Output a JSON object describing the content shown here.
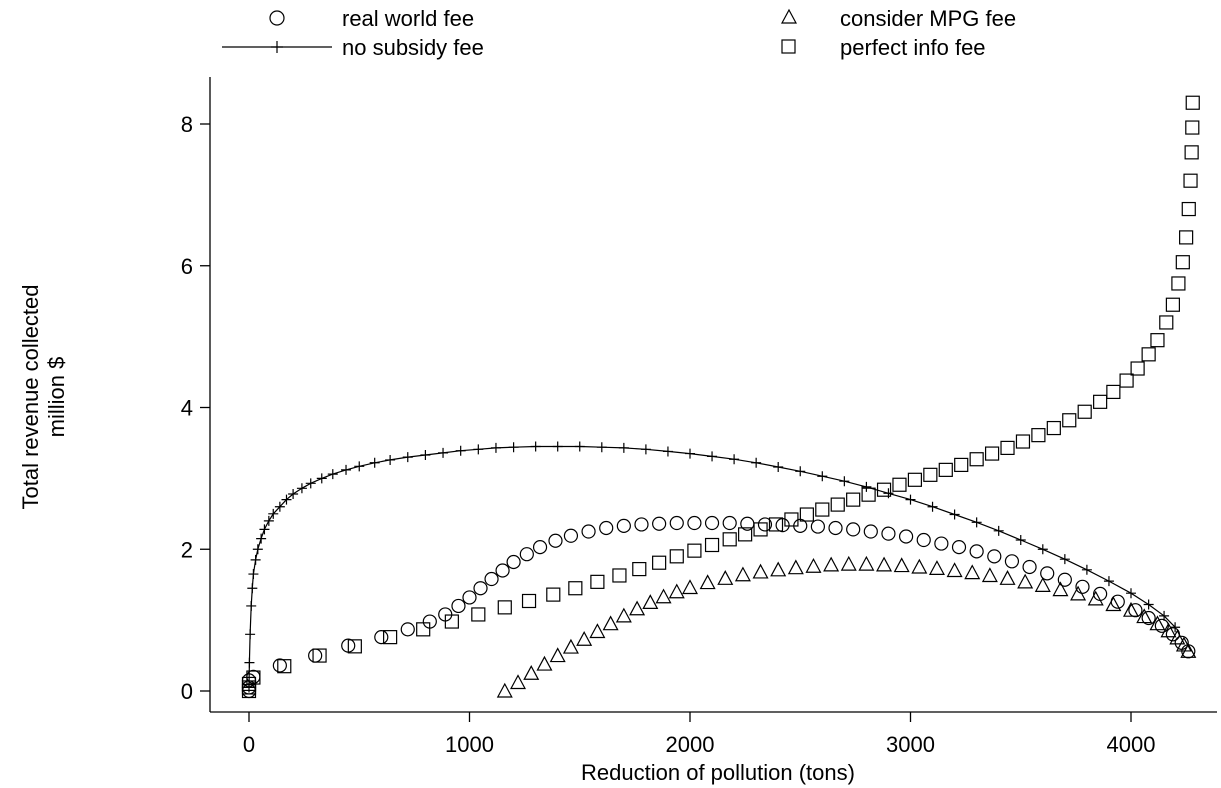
{
  "chart_data": {
    "type": "scatter",
    "title": "",
    "xlabel": "Reduction of pollution (tons)",
    "ylabel": [
      "Total revenue collected",
      "million $"
    ],
    "xlim": [
      -150,
      4400
    ],
    "ylim": [
      -0.3,
      8.6
    ],
    "xticks": [
      0,
      1000,
      2000,
      3000,
      4000
    ],
    "yticks": [
      0,
      2,
      4,
      6,
      8
    ],
    "grid": false,
    "legend_position": "top",
    "series": [
      {
        "name": "real world fee",
        "marker": "circle",
        "line": false,
        "x": [
          0,
          0,
          0,
          20,
          140,
          300,
          450,
          600,
          720,
          820,
          890,
          950,
          1000,
          1050,
          1100,
          1150,
          1200,
          1260,
          1320,
          1390,
          1460,
          1540,
          1620,
          1700,
          1780,
          1860,
          1940,
          2020,
          2100,
          2180,
          2260,
          2340,
          2420,
          2500,
          2580,
          2660,
          2740,
          2820,
          2900,
          2980,
          3060,
          3140,
          3220,
          3300,
          3380,
          3460,
          3540,
          3620,
          3700,
          3780,
          3860,
          3940,
          4020,
          4080,
          4140,
          4190,
          4230,
          4260
        ],
        "y": [
          0,
          0.05,
          0.15,
          0.2,
          0.36,
          0.5,
          0.64,
          0.76,
          0.87,
          0.98,
          1.08,
          1.2,
          1.32,
          1.45,
          1.58,
          1.7,
          1.82,
          1.93,
          2.03,
          2.12,
          2.19,
          2.25,
          2.3,
          2.33,
          2.35,
          2.36,
          2.37,
          2.37,
          2.37,
          2.37,
          2.36,
          2.35,
          2.34,
          2.33,
          2.32,
          2.3,
          2.28,
          2.25,
          2.22,
          2.18,
          2.13,
          2.08,
          2.03,
          1.97,
          1.9,
          1.83,
          1.75,
          1.66,
          1.57,
          1.47,
          1.37,
          1.26,
          1.14,
          1.03,
          0.92,
          0.8,
          0.68,
          0.56
        ]
      },
      {
        "name": "consider MPG fee",
        "marker": "triangle",
        "line": false,
        "x": [
          1160,
          1220,
          1280,
          1340,
          1400,
          1460,
          1520,
          1580,
          1640,
          1700,
          1760,
          1820,
          1880,
          1940,
          2000,
          2080,
          2160,
          2240,
          2320,
          2400,
          2480,
          2560,
          2640,
          2720,
          2800,
          2880,
          2960,
          3040,
          3120,
          3200,
          3280,
          3360,
          3440,
          3520,
          3600,
          3680,
          3760,
          3840,
          3920,
          4000,
          4060,
          4120,
          4170,
          4210,
          4240,
          4260
        ],
        "y": [
          0.0,
          0.12,
          0.25,
          0.38,
          0.5,
          0.62,
          0.73,
          0.84,
          0.95,
          1.06,
          1.16,
          1.25,
          1.33,
          1.4,
          1.46,
          1.53,
          1.59,
          1.64,
          1.68,
          1.71,
          1.74,
          1.76,
          1.78,
          1.79,
          1.79,
          1.78,
          1.77,
          1.75,
          1.73,
          1.7,
          1.67,
          1.63,
          1.59,
          1.54,
          1.49,
          1.43,
          1.37,
          1.3,
          1.22,
          1.14,
          1.05,
          0.95,
          0.85,
          0.75,
          0.65,
          0.56
        ]
      },
      {
        "name": "no subsidy fee",
        "marker": "plus",
        "line": true,
        "x": [
          0,
          2,
          5,
          10,
          15,
          20,
          30,
          40,
          55,
          70,
          90,
          110,
          140,
          170,
          200,
          240,
          280,
          330,
          380,
          440,
          500,
          570,
          640,
          720,
          800,
          880,
          960,
          1040,
          1120,
          1200,
          1300,
          1400,
          1500,
          1600,
          1700,
          1800,
          1900,
          2000,
          2100,
          2200,
          2300,
          2400,
          2500,
          2600,
          2700,
          2800,
          2900,
          3000,
          3100,
          3200,
          3300,
          3400,
          3500,
          3600,
          3700,
          3800,
          3900,
          4000,
          4080,
          4150,
          4200
        ],
        "y": [
          0.05,
          0.4,
          0.8,
          1.2,
          1.45,
          1.65,
          1.85,
          2.0,
          2.15,
          2.28,
          2.4,
          2.5,
          2.6,
          2.7,
          2.78,
          2.86,
          2.93,
          3.0,
          3.06,
          3.12,
          3.17,
          3.22,
          3.26,
          3.3,
          3.33,
          3.36,
          3.39,
          3.41,
          3.43,
          3.44,
          3.45,
          3.45,
          3.45,
          3.44,
          3.43,
          3.41,
          3.38,
          3.35,
          3.31,
          3.27,
          3.22,
          3.16,
          3.1,
          3.03,
          2.96,
          2.88,
          2.79,
          2.7,
          2.6,
          2.49,
          2.38,
          2.26,
          2.13,
          2.0,
          1.86,
          1.71,
          1.55,
          1.38,
          1.22,
          1.06,
          0.9
        ]
      },
      {
        "name": "perfect info fee",
        "marker": "square",
        "line": false,
        "x": [
          0,
          0,
          0,
          20,
          160,
          320,
          480,
          640,
          790,
          920,
          1040,
          1160,
          1270,
          1380,
          1480,
          1580,
          1680,
          1770,
          1860,
          1940,
          2020,
          2100,
          2180,
          2250,
          2320,
          2390,
          2460,
          2530,
          2600,
          2670,
          2740,
          2810,
          2880,
          2950,
          3020,
          3090,
          3160,
          3230,
          3300,
          3370,
          3440,
          3510,
          3580,
          3650,
          3720,
          3790,
          3860,
          3920,
          3980,
          4030,
          4080,
          4120,
          4160,
          4190,
          4215,
          4235,
          4250,
          4262,
          4270,
          4275,
          4278,
          4280
        ],
        "y": [
          0,
          0.05,
          0.1,
          0.19,
          0.35,
          0.5,
          0.63,
          0.76,
          0.87,
          0.98,
          1.08,
          1.18,
          1.27,
          1.36,
          1.45,
          1.54,
          1.63,
          1.72,
          1.81,
          1.9,
          1.98,
          2.06,
          2.14,
          2.21,
          2.28,
          2.35,
          2.42,
          2.49,
          2.56,
          2.63,
          2.7,
          2.77,
          2.84,
          2.91,
          2.98,
          3.05,
          3.12,
          3.19,
          3.27,
          3.35,
          3.43,
          3.52,
          3.61,
          3.71,
          3.82,
          3.94,
          4.08,
          4.22,
          4.38,
          4.55,
          4.75,
          4.95,
          5.2,
          5.45,
          5.75,
          6.05,
          6.4,
          6.8,
          7.2,
          7.6,
          7.95,
          8.3
        ]
      }
    ]
  }
}
